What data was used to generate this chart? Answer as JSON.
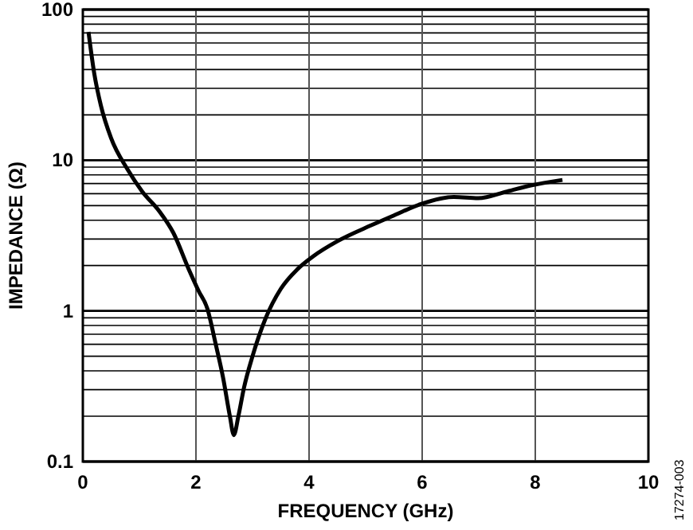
{
  "chart_data": {
    "type": "line",
    "xlabel": "FREQUENCY (GHz)",
    "ylabel": "IMPEDANCE (Ω)",
    "log": "y",
    "grid": true,
    "marker": "none",
    "line_style": "solid",
    "xlim": [
      0,
      10
    ],
    "xticks": [
      0,
      2,
      4,
      6,
      8,
      10
    ],
    "ylim": [
      0.1,
      100
    ],
    "yticks": [
      0.1,
      1,
      10,
      100
    ],
    "annotations": [
      "17274-003"
    ],
    "series": [
      {
        "color": "#000000",
        "x": [
          0.1,
          0.2,
          0.32,
          0.5,
          0.79,
          1.05,
          1.35,
          1.6,
          1.87,
          2.05,
          2.2,
          2.35,
          2.48,
          2.6,
          2.67,
          2.75,
          2.85,
          3.0,
          3.23,
          3.5,
          3.8,
          4.07,
          4.5,
          5.1,
          5.5,
          6.0,
          6.56,
          6.99,
          7.5,
          7.92,
          8.48
        ],
        "values": [
          71,
          38,
          23,
          14,
          8.7,
          6.2,
          4.6,
          3.3,
          1.9,
          1.35,
          1.04,
          0.6,
          0.36,
          0.2,
          0.15,
          0.2,
          0.31,
          0.5,
          0.89,
          1.4,
          1.9,
          2.3,
          2.9,
          3.7,
          4.3,
          5.15,
          5.7,
          5.6,
          6.2,
          6.8,
          7.4
        ]
      }
    ]
  }
}
